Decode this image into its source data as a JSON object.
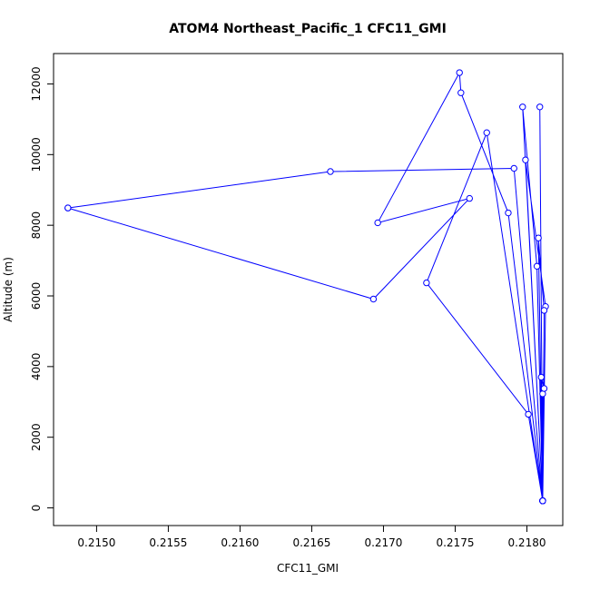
{
  "chart_data": {
    "type": "line",
    "title": "ATOM4 Northeast_Pacific_1 CFC11_GMI",
    "xlabel": "CFC11_GMI",
    "ylabel": "Altitude (m)",
    "xlim": [
      0.2147,
      0.21825
    ],
    "ylim": [
      -500,
      12860
    ],
    "x_ticks": [
      0.215,
      0.2155,
      0.216,
      0.2165,
      0.217,
      0.2175,
      0.218
    ],
    "x_tick_labels": [
      "0.2150",
      "0.2155",
      "0.2160",
      "0.2165",
      "0.2170",
      "0.2175",
      "0.2180"
    ],
    "y_ticks": [
      0,
      2000,
      4000,
      6000,
      8000,
      10000,
      12000
    ],
    "y_tick_labels": [
      "0",
      "2000",
      "4000",
      "6000",
      "8000",
      "10000",
      "12000"
    ],
    "grid": false,
    "legend": "none",
    "series": [
      {
        "color": "#0000ff",
        "marker": "open-circle",
        "points": [
          {
            "x": 0.21811,
            "y": 200
          },
          {
            "x": 0.21811,
            "y": 200
          },
          {
            "x": 0.21811,
            "y": 200
          },
          {
            "x": 0.21811,
            "y": 3230
          },
          {
            "x": 0.21812,
            "y": 3380
          },
          {
            "x": 0.2181,
            "y": 3700
          },
          {
            "x": 0.21811,
            "y": 200
          },
          {
            "x": 0.21801,
            "y": 2650
          },
          {
            "x": 0.2173,
            "y": 6370
          },
          {
            "x": 0.21772,
            "y": 10620
          },
          {
            "x": 0.21811,
            "y": 200
          },
          {
            "x": 0.21813,
            "y": 5700
          },
          {
            "x": 0.21799,
            "y": 9850
          },
          {
            "x": 0.21811,
            "y": 200
          },
          {
            "x": 0.21808,
            "y": 7640
          },
          {
            "x": 0.21812,
            "y": 5590
          },
          {
            "x": 0.21811,
            "y": 200
          },
          {
            "x": 0.21807,
            "y": 6840
          },
          {
            "x": 0.21797,
            "y": 11350
          },
          {
            "x": 0.21811,
            "y": 200
          },
          {
            "x": 0.21809,
            "y": 11350
          },
          {
            "x": 0.21811,
            "y": 200
          },
          {
            "x": 0.21787,
            "y": 8350
          },
          {
            "x": 0.21754,
            "y": 11750
          },
          {
            "x": 0.21753,
            "y": 12320
          },
          {
            "x": 0.21696,
            "y": 8070
          },
          {
            "x": 0.2176,
            "y": 8760
          },
          {
            "x": 0.21693,
            "y": 5910
          },
          {
            "x": 0.2148,
            "y": 8490
          },
          {
            "x": 0.2148,
            "y": 8490
          },
          {
            "x": 0.21663,
            "y": 9520
          },
          {
            "x": 0.21791,
            "y": 9610
          },
          {
            "x": 0.21811,
            "y": 200
          }
        ]
      }
    ]
  }
}
